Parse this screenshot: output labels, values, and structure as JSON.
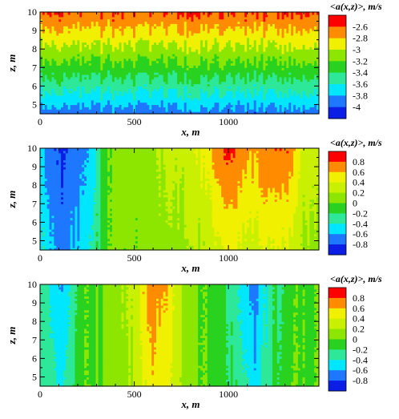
{
  "chart_data": [
    {
      "type": "heatmap",
      "title": "",
      "xlabel": "x, m",
      "ylabel": "z, m",
      "xlim": [
        0,
        1480
      ],
      "ylim": [
        4.5,
        10
      ],
      "x_ticks": [
        "0",
        "500",
        "1000"
      ],
      "y_ticks": [
        "5",
        "6",
        "7",
        "8",
        "9",
        "10"
      ],
      "colorbar": {
        "title": "<a(x,z)>, m/s",
        "levels": [
          -4.1,
          -4.0,
          -3.8,
          -3.6,
          -3.4,
          -3.2,
          -3.0,
          -2.8,
          -2.6,
          -2.5
        ],
        "labels": [
          "-2.6",
          "-2.8",
          "-3",
          "-3.2",
          "-3.4",
          "-3.6",
          "-3.8",
          "-4"
        ],
        "colors": [
          "#0a1ee6",
          "#1e78ff",
          "#00e6ff",
          "#2ee89a",
          "#28d21e",
          "#8ce600",
          "#f0f000",
          "#ff8c00",
          "#ff0000"
        ]
      },
      "z_range": [
        -4.0,
        -2.55
      ],
      "description_of_field": "value increases with height z: about -3.9 near z=4.5 to about -2.6 at z=10, uniform trend across x"
    },
    {
      "type": "heatmap",
      "title": "",
      "xlabel": "x, m",
      "ylabel": "z, m",
      "xlim": [
        0,
        1480
      ],
      "ylim": [
        4.5,
        10
      ],
      "x_ticks": [
        "0",
        "500",
        "1000"
      ],
      "y_ticks": [
        "5",
        "6",
        "7",
        "8",
        "9",
        "10"
      ],
      "colorbar": {
        "title": "<a(x,z)>, m/s",
        "levels": [
          -0.9,
          -0.8,
          -0.6,
          -0.4,
          -0.2,
          0.0,
          0.2,
          0.4,
          0.6,
          0.8,
          0.9
        ],
        "labels": [
          "0.8",
          "0.6",
          "0.4",
          "0.2",
          "0",
          "-0.2",
          "-0.4",
          "-0.6",
          "-0.8"
        ],
        "colors": [
          "#0a1ee6",
          "#1e78ff",
          "#00e6ff",
          "#2ee89a",
          "#28d21e",
          "#8ce600",
          "#c8f000",
          "#f0f000",
          "#ff8c00",
          "#ff0000"
        ]
      },
      "profile_x": [
        0,
        60,
        100,
        150,
        200,
        260,
        340,
        400,
        500,
        600,
        700,
        800,
        900,
        950,
        1000,
        1100,
        1200,
        1300,
        1400,
        1480
      ],
      "profile_value": [
        -0.45,
        -0.7,
        -0.78,
        -0.72,
        -0.65,
        -0.5,
        -0.1,
        0.05,
        0.1,
        0.15,
        0.2,
        0.3,
        0.45,
        0.65,
        0.75,
        0.55,
        0.65,
        0.7,
        0.3,
        0.2
      ]
    },
    {
      "type": "heatmap",
      "title": "",
      "xlabel": "x, m",
      "ylabel": "z, m",
      "xlim": [
        0,
        1480
      ],
      "ylim": [
        4.5,
        10
      ],
      "x_ticks": [
        "0",
        "500",
        "1000"
      ],
      "y_ticks": [
        "5",
        "6",
        "7",
        "8",
        "9",
        "10"
      ],
      "colorbar": {
        "title": "<a(x,z)>, m/s",
        "levels": [
          -0.9,
          -0.8,
          -0.6,
          -0.4,
          -0.2,
          0.0,
          0.2,
          0.4,
          0.6,
          0.8,
          0.9
        ],
        "labels": [
          "0.8",
          "0.6",
          "0.4",
          "0.2",
          "0",
          "-0.2",
          "-0.4",
          "-0.6",
          "-0.8"
        ],
        "colors": [
          "#0a1ee6",
          "#1e78ff",
          "#00e6ff",
          "#2ee89a",
          "#28d21e",
          "#8ce600",
          "#c8f000",
          "#f0f000",
          "#ff8c00",
          "#ff0000"
        ]
      },
      "profile_x": [
        0,
        50,
        80,
        110,
        140,
        200,
        300,
        400,
        500,
        560,
        600,
        640,
        700,
        760,
        850,
        950,
        1050,
        1100,
        1130,
        1170,
        1250,
        1350,
        1480
      ],
      "profile_value": [
        -0.2,
        -0.35,
        -0.5,
        -0.6,
        -0.45,
        -0.1,
        0.0,
        0.1,
        0.25,
        0.55,
        0.65,
        0.6,
        0.45,
        0.15,
        0.0,
        -0.1,
        -0.3,
        -0.55,
        -0.65,
        -0.5,
        -0.2,
        -0.05,
        0.0
      ]
    }
  ]
}
